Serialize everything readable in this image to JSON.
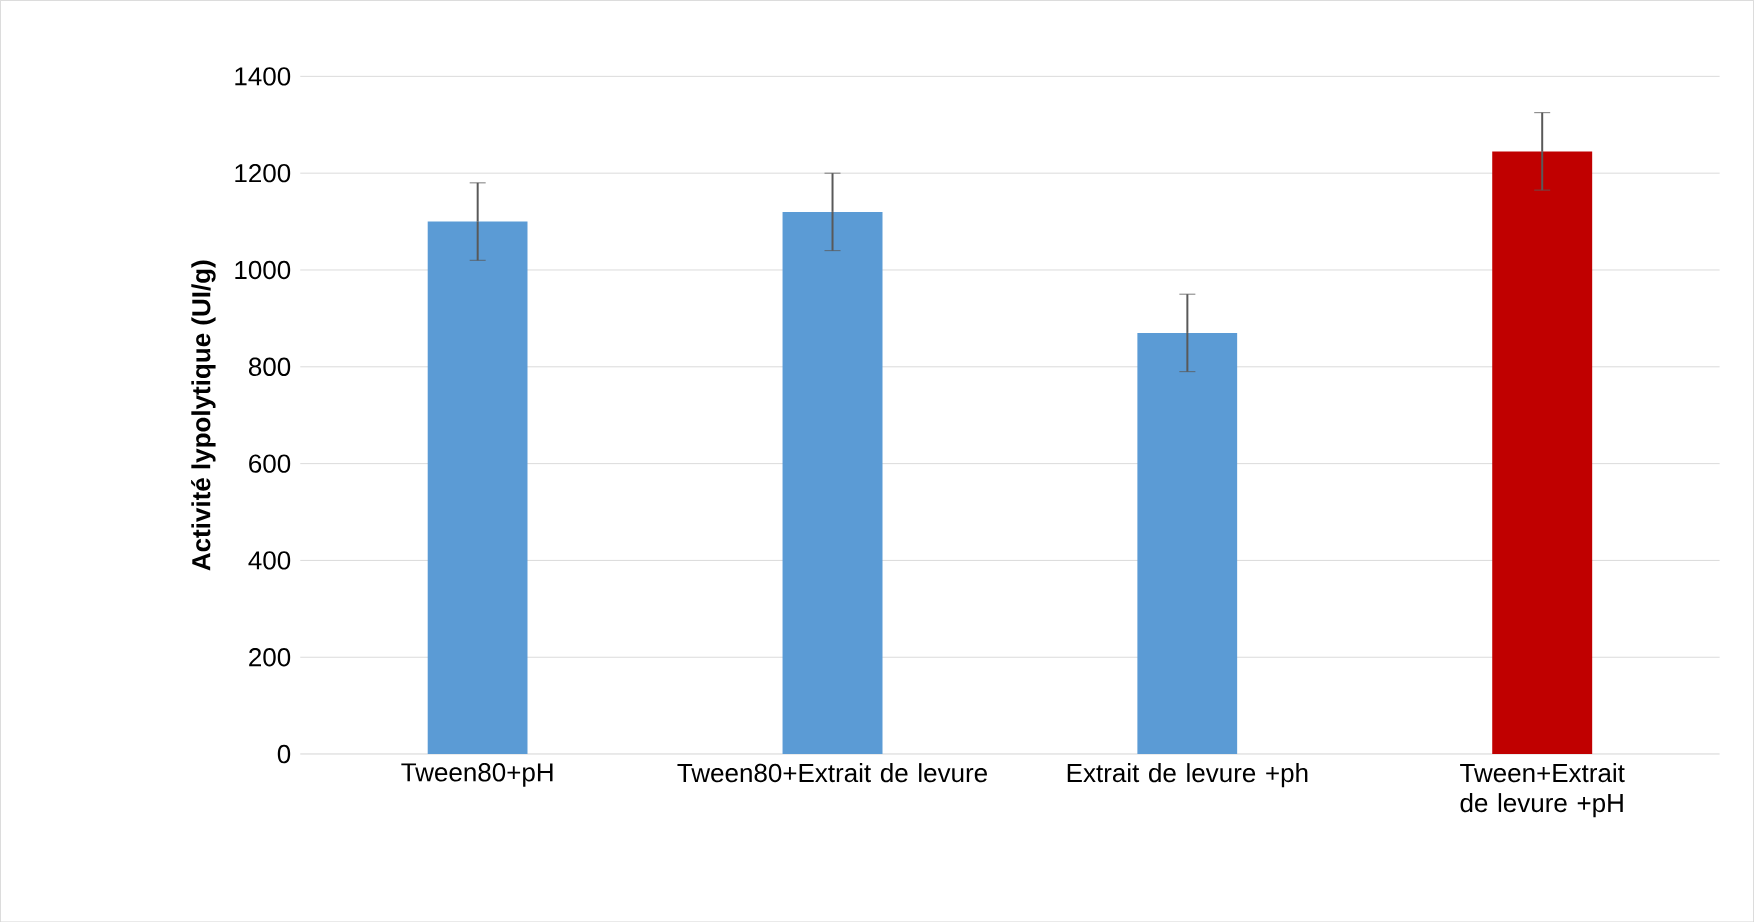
{
  "chart_data": {
    "type": "bar",
    "ylabel": "**Activité lypolytique (UI/g)**",
    "categories": [
      "Tween80+pH",
      "Tween80+Extrait de levure",
      "Extrait de levure +ph",
      "Tween+Extrait de levure +pH"
    ],
    "values": [
      1100,
      1120,
      870,
      1245
    ],
    "colors": [
      "#5b9bd5",
      "#5b9bd5",
      "#5b9bd5",
      "#c00000"
    ],
    "errors": [
      80,
      80,
      80,
      80
    ],
    "ylim": [
      0,
      1400
    ],
    "yticks": [
      0,
      200,
      400,
      600,
      800,
      1000,
      1200,
      1400
    ],
    "grid": "y"
  }
}
